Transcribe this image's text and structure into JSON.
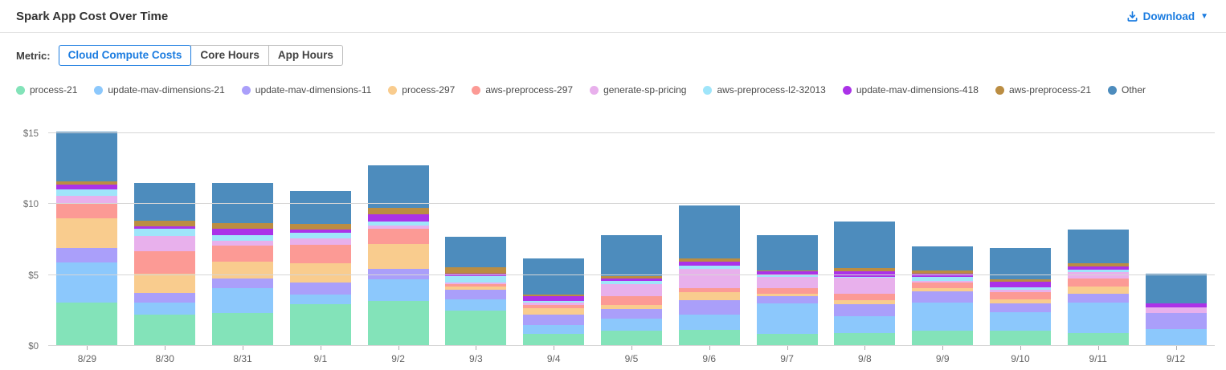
{
  "header": {
    "title": "Spark App Cost Over Time",
    "download_label": "Download",
    "icons": {
      "download": "download-icon",
      "caret": "caret-down-icon"
    }
  },
  "metric": {
    "label": "Metric:",
    "options": [
      {
        "label": "Cloud Compute Costs",
        "selected": true
      },
      {
        "label": "Core Hours",
        "selected": false
      },
      {
        "label": "App Hours",
        "selected": false
      }
    ]
  },
  "colors": {
    "accent_blue": "#1b7ce0",
    "gridline": "#d6d6d6",
    "axis_text": "#6e6e6e",
    "legend_text": "#4a4a4a"
  },
  "chart_data": {
    "type": "bar",
    "stacked": true,
    "title": "Spark App Cost Over Time",
    "xlabel": "",
    "ylabel": "Cloud Compute Costs ($)",
    "grid": true,
    "legend_position": "top",
    "ylim": [
      0,
      15.9
    ],
    "yticks": [
      0,
      5,
      10,
      15
    ],
    "ytick_labels": [
      "$0",
      "$5",
      "$10",
      "$15"
    ],
    "categories": [
      "8/29",
      "8/30",
      "8/31",
      "9/1",
      "9/2",
      "9/3",
      "9/4",
      "9/5",
      "9/6",
      "9/7",
      "9/8",
      "9/9",
      "9/10",
      "9/11",
      "9/12"
    ],
    "series": [
      {
        "name": "process-21",
        "color": "#83e3b9",
        "values": [
          3.05,
          2.2,
          2.3,
          2.95,
          3.15,
          2.5,
          0.85,
          1.05,
          1.15,
          0.85,
          0.9,
          1.05,
          1.05,
          0.9,
          0.0
        ]
      },
      {
        "name": "update-mav-dimensions-21",
        "color": "#8cc8fc",
        "values": [
          2.85,
          0.85,
          1.75,
          0.7,
          1.55,
          0.8,
          0.6,
          0.9,
          1.05,
          2.15,
          1.2,
          2.0,
          1.3,
          2.15,
          1.2
        ]
      },
      {
        "name": "update-mav-dimensions-11",
        "color": "#aa9ffa",
        "values": [
          1.0,
          0.7,
          0.7,
          0.85,
          0.75,
          0.65,
          0.75,
          0.65,
          1.0,
          0.5,
          0.85,
          0.8,
          0.65,
          0.65,
          1.1
        ]
      },
      {
        "name": "process-297",
        "color": "#f9cc8e",
        "values": [
          2.1,
          1.35,
          1.2,
          1.35,
          1.75,
          0.25,
          0.45,
          0.3,
          0.6,
          0.2,
          0.3,
          0.2,
          0.3,
          0.5,
          0.0
        ]
      },
      {
        "name": "aws-preprocess-297",
        "color": "#fc9a95",
        "values": [
          1.05,
          1.6,
          1.15,
          1.3,
          1.05,
          0.15,
          0.25,
          0.6,
          0.3,
          0.4,
          0.45,
          0.4,
          0.5,
          0.55,
          0.0
        ]
      },
      {
        "name": "generate-sp-pricing",
        "color": "#e8b0ec",
        "values": [
          0.55,
          1.05,
          0.3,
          0.45,
          0.25,
          0.1,
          0.15,
          0.85,
          1.35,
          0.75,
          1.1,
          0.15,
          0.15,
          0.45,
          0.4
        ]
      },
      {
        "name": "aws-preprocess-l2-32013",
        "color": "#9fe5fa",
        "values": [
          0.45,
          0.5,
          0.4,
          0.4,
          0.3,
          0.45,
          0.1,
          0.25,
          0.2,
          0.2,
          0.05,
          0.25,
          0.2,
          0.2,
          0.0
        ]
      },
      {
        "name": "update-mav-dimensions-418",
        "color": "#ab32e8",
        "values": [
          0.3,
          0.2,
          0.45,
          0.2,
          0.5,
          0.2,
          0.35,
          0.15,
          0.3,
          0.2,
          0.4,
          0.25,
          0.4,
          0.2,
          0.3
        ]
      },
      {
        "name": "aws-preprocess-21",
        "color": "#bb8d42",
        "values": [
          0.25,
          0.4,
          0.4,
          0.4,
          0.45,
          0.45,
          0.1,
          0.2,
          0.2,
          0.1,
          0.25,
          0.25,
          0.15,
          0.25,
          0.0
        ]
      },
      {
        "name": "Other",
        "color": "#4d8cbd",
        "values": [
          3.5,
          2.65,
          2.85,
          2.35,
          3.0,
          2.15,
          2.6,
          2.85,
          3.75,
          2.45,
          3.25,
          1.7,
          2.2,
          2.35,
          2.1
        ]
      }
    ],
    "totals": [
      15.1,
      11.5,
      11.5,
      10.95,
      12.75,
      7.7,
      6.2,
      7.8,
      9.9,
      7.8,
      8.75,
      7.05,
      6.9,
      8.2,
      5.1
    ]
  }
}
